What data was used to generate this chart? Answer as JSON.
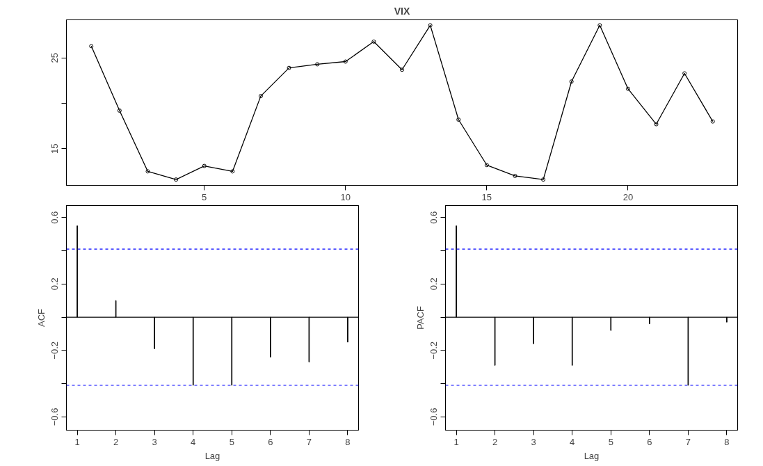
{
  "chart_data": [
    {
      "type": "line",
      "title": "VIX",
      "marker": "circle",
      "line_style": "solid",
      "x": [
        1,
        2,
        3,
        4,
        5,
        6,
        7,
        8,
        9,
        10,
        11,
        12,
        13,
        14,
        15,
        16,
        17,
        18,
        19,
        20,
        21,
        22,
        23
      ],
      "series": [
        {
          "color": "#000000",
          "values": [
            26.3,
            19.2,
            12.5,
            11.6,
            13.1,
            12.5,
            20.8,
            23.9,
            24.3,
            24.6,
            26.8,
            23.7,
            28.6,
            18.2,
            13.2,
            12.0,
            11.6,
            22.4,
            28.6,
            21.6,
            17.7,
            23.3,
            18.0
          ]
        }
      ],
      "xlim": [
        0.12,
        23.88
      ],
      "xticks": [
        5,
        10,
        15,
        20
      ],
      "ylim": [
        10.96,
        29.2
      ],
      "yticks": [
        15,
        {
          "value": 20,
          "label": null
        },
        25
      ]
    },
    {
      "type": "bar",
      "ylabel": "ACF",
      "xlabel": "Lag",
      "x": [
        1,
        2,
        3,
        4,
        5,
        6,
        7,
        8
      ],
      "series": [
        {
          "color": "#000000",
          "values": [
            0.55,
            0.1,
            -0.19,
            -0.41,
            -0.41,
            -0.24,
            -0.27,
            -0.15
          ]
        }
      ],
      "xlim": [
        0.72,
        8.28
      ],
      "xticks": [
        1,
        2,
        3,
        4,
        5,
        6,
        7,
        8
      ],
      "ylim": [
        -0.68,
        0.672
      ],
      "yticks": [
        {
          "value": -0.6,
          "label": "−0.6"
        },
        {
          "value": -0.4,
          "label": null
        },
        {
          "value": -0.2,
          "label": "−0.2"
        },
        {
          "value": 0,
          "label": null
        },
        0.2,
        {
          "value": 0.4,
          "label": null
        },
        0.6
      ],
      "ref_lines": [
        {
          "axis": "y",
          "value": 0,
          "color": "#000000",
          "line_style": "solid"
        },
        {
          "axis": "y",
          "value": 0.41,
          "color": "#0000ff",
          "line_style": "dashed"
        },
        {
          "axis": "y",
          "value": -0.41,
          "color": "#0000ff",
          "line_style": "dashed"
        }
      ]
    },
    {
      "type": "bar",
      "ylabel": "PACF",
      "xlabel": "Lag",
      "x": [
        1,
        2,
        3,
        4,
        5,
        6,
        7,
        8
      ],
      "series": [
        {
          "color": "#000000",
          "values": [
            0.55,
            -0.29,
            -0.16,
            -0.29,
            -0.08,
            -0.04,
            -0.41,
            -0.03
          ]
        }
      ],
      "xlim": [
        0.72,
        8.28
      ],
      "xticks": [
        1,
        2,
        3,
        4,
        5,
        6,
        7,
        8
      ],
      "ylim": [
        -0.68,
        0.672
      ],
      "yticks": [
        {
          "value": -0.6,
          "label": "−0.6"
        },
        {
          "value": -0.4,
          "label": null
        },
        {
          "value": -0.2,
          "label": "−0.2"
        },
        {
          "value": 0,
          "label": null
        },
        0.2,
        {
          "value": 0.4,
          "label": null
        },
        0.6
      ],
      "ref_lines": [
        {
          "axis": "y",
          "value": 0,
          "color": "#000000",
          "line_style": "solid"
        },
        {
          "axis": "y",
          "value": 0.41,
          "color": "#0000ff",
          "line_style": "dashed"
        },
        {
          "axis": "y",
          "value": -0.41,
          "color": "#0000ff",
          "line_style": "dashed"
        }
      ]
    }
  ]
}
